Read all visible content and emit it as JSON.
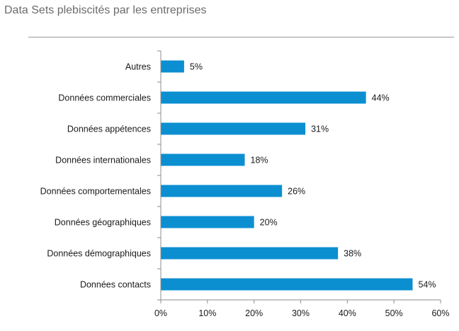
{
  "page": {
    "title": "Data Sets plebiscités par les entreprises"
  },
  "chart_data": {
    "type": "bar",
    "orientation": "horizontal",
    "categories": [
      "Autres",
      "Données commerciales",
      "Données appétences",
      "Données internationales",
      "Données comportementales",
      "Données géographiques",
      "Données démographiques",
      "Données contacts"
    ],
    "values": [
      5,
      44,
      31,
      18,
      26,
      20,
      38,
      54
    ],
    "value_labels": [
      "5%",
      "44%",
      "31%",
      "18%",
      "26%",
      "20%",
      "38%",
      "54%"
    ],
    "xlim": [
      0,
      60
    ],
    "x_ticks": [
      0,
      10,
      20,
      30,
      40,
      50,
      60
    ],
    "x_tick_labels": [
      "0%",
      "10%",
      "20%",
      "30%",
      "40%",
      "50%",
      "60%"
    ],
    "bar_color": "#0b8fd1",
    "grid": false,
    "legend": "none"
  }
}
